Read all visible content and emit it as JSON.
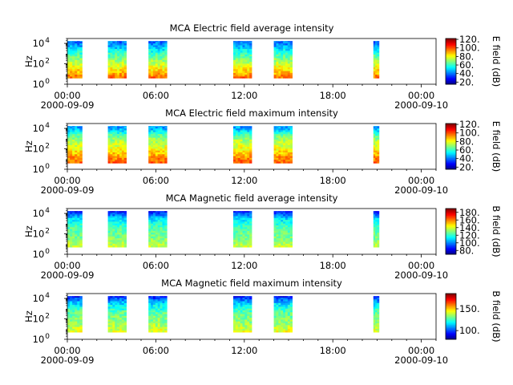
{
  "chart_data": [
    {
      "type": "heatmap",
      "title": "MCA  Electric field average intensity",
      "ylabel": "Hz",
      "colorbar_label": "E field (dB)",
      "yscale": "log",
      "ylim": [
        1,
        30000
      ],
      "yticks": [
        {
          "value": 1,
          "base": "10",
          "exp": "0"
        },
        {
          "value": 100,
          "base": "10",
          "exp": "2"
        },
        {
          "value": 10000,
          "base": "10",
          "exp": "4"
        }
      ],
      "x_start": "2000-09-09 00:00",
      "x_end": "2000-09-10 01:00",
      "xticks": [
        {
          "hour": 0,
          "label": "00:00",
          "date": "2000-09-09"
        },
        {
          "hour": 6,
          "label": "06:00"
        },
        {
          "hour": 12,
          "label": "12:00"
        },
        {
          "hour": 18,
          "label": "18:00"
        },
        {
          "hour": 24,
          "label": "00:00",
          "date": "2000-09-10"
        }
      ],
      "clim": [
        15,
        122
      ],
      "cbar_ticks": [
        "20.",
        "40.",
        "60.",
        "80.",
        "100.",
        "120."
      ],
      "cbar_tick_values": [
        20,
        40,
        60,
        80,
        100,
        120
      ],
      "intervals": [
        {
          "start": "00:00",
          "end": "01:00"
        },
        {
          "start": "02:45",
          "end": "04:00"
        },
        {
          "start": "05:30",
          "end": "06:45"
        },
        {
          "start": "11:15",
          "end": "12:30"
        },
        {
          "start": "14:00",
          "end": "15:15"
        },
        {
          "start": "20:45",
          "end": "21:00"
        }
      ],
      "spectrum_db": [
        {
          "hz": 1,
          "value": 110
        },
        {
          "hz": 10,
          "value": 90
        },
        {
          "hz": 100,
          "value": 75
        },
        {
          "hz": 1000,
          "value": 60
        },
        {
          "hz": 10000,
          "value": 40
        }
      ]
    },
    {
      "type": "heatmap",
      "title": "MCA  Electric field maximum intensity",
      "ylabel": "Hz",
      "colorbar_label": "E field (dB)",
      "yscale": "log",
      "ylim": [
        1,
        30000
      ],
      "yticks": [
        {
          "value": 1,
          "base": "10",
          "exp": "0"
        },
        {
          "value": 100,
          "base": "10",
          "exp": "2"
        },
        {
          "value": 10000,
          "base": "10",
          "exp": "4"
        }
      ],
      "x_start": "2000-09-09 00:00",
      "x_end": "2000-09-10 01:00",
      "xticks": [
        {
          "hour": 0,
          "label": "00:00",
          "date": "2000-09-09"
        },
        {
          "hour": 6,
          "label": "06:00"
        },
        {
          "hour": 12,
          "label": "12:00"
        },
        {
          "hour": 18,
          "label": "18:00"
        },
        {
          "hour": 24,
          "label": "00:00",
          "date": "2000-09-10"
        }
      ],
      "clim": [
        15,
        122
      ],
      "cbar_ticks": [
        "20.",
        "40.",
        "60.",
        "80.",
        "100.",
        "120."
      ],
      "cbar_tick_values": [
        20,
        40,
        60,
        80,
        100,
        120
      ],
      "intervals": [
        {
          "start": "00:00",
          "end": "01:00"
        },
        {
          "start": "02:45",
          "end": "04:00"
        },
        {
          "start": "05:30",
          "end": "06:45"
        },
        {
          "start": "11:15",
          "end": "12:30"
        },
        {
          "start": "14:00",
          "end": "15:15"
        },
        {
          "start": "20:45",
          "end": "21:00"
        }
      ],
      "spectrum_db": [
        {
          "hz": 1,
          "value": 105
        },
        {
          "hz": 10,
          "value": 95
        },
        {
          "hz": 100,
          "value": 80
        },
        {
          "hz": 1000,
          "value": 70
        },
        {
          "hz": 10000,
          "value": 45
        }
      ]
    },
    {
      "type": "heatmap",
      "title": "MCA  Magnetic field average intensity",
      "ylabel": "Hz",
      "colorbar_label": "B field (dB)",
      "yscale": "log",
      "ylim": [
        1,
        30000
      ],
      "yticks": [
        {
          "value": 1,
          "base": "10",
          "exp": "0"
        },
        {
          "value": 100,
          "base": "10",
          "exp": "2"
        },
        {
          "value": 10000,
          "base": "10",
          "exp": "4"
        }
      ],
      "x_start": "2000-09-09 00:00",
      "x_end": "2000-09-10 01:00",
      "xticks": [
        {
          "hour": 0,
          "label": "00:00",
          "date": "2000-09-09"
        },
        {
          "hour": 6,
          "label": "06:00"
        },
        {
          "hour": 12,
          "label": "12:00"
        },
        {
          "hour": 18,
          "label": "18:00"
        },
        {
          "hour": 24,
          "label": "00:00",
          "date": "2000-09-10"
        }
      ],
      "clim": [
        70,
        190
      ],
      "cbar_ticks": [
        "80.",
        "100.",
        "120.",
        "140.",
        "160.",
        "180."
      ],
      "cbar_tick_values": [
        80,
        100,
        120,
        140,
        160,
        180
      ],
      "intervals": [
        {
          "start": "00:00",
          "end": "01:00"
        },
        {
          "start": "02:45",
          "end": "04:00"
        },
        {
          "start": "05:30",
          "end": "06:45"
        },
        {
          "start": "11:15",
          "end": "12:30"
        },
        {
          "start": "14:00",
          "end": "15:15"
        },
        {
          "start": "20:45",
          "end": "21:00"
        }
      ],
      "spectrum_db": [
        {
          "hz": 4,
          "value": 140
        },
        {
          "hz": 30,
          "value": 130
        },
        {
          "hz": 300,
          "value": 125
        },
        {
          "hz": 3000,
          "value": 110
        },
        {
          "hz": 20000,
          "value": 80
        }
      ]
    },
    {
      "type": "heatmap",
      "title": "MCA  Magnetic field maximum intensity",
      "ylabel": "Hz",
      "colorbar_label": "B field (dB)",
      "yscale": "log",
      "ylim": [
        1,
        30000
      ],
      "yticks": [
        {
          "value": 1,
          "base": "10",
          "exp": "0"
        },
        {
          "value": 100,
          "base": "10",
          "exp": "2"
        },
        {
          "value": 10000,
          "base": "10",
          "exp": "4"
        }
      ],
      "x_start": "2000-09-09 00:00",
      "x_end": "2000-09-10 01:00",
      "xticks": [
        {
          "hour": 0,
          "label": "00:00",
          "date": "2000-09-09"
        },
        {
          "hour": 6,
          "label": "06:00"
        },
        {
          "hour": 12,
          "label": "12:00"
        },
        {
          "hour": 18,
          "label": "18:00"
        },
        {
          "hour": 24,
          "label": "00:00",
          "date": "2000-09-10"
        }
      ],
      "clim": [
        80,
        185
      ],
      "cbar_ticks": [
        "100.",
        "150."
      ],
      "cbar_tick_values": [
        100,
        150
      ],
      "intervals": [
        {
          "start": "00:00",
          "end": "01:00"
        },
        {
          "start": "02:45",
          "end": "04:00"
        },
        {
          "start": "05:30",
          "end": "06:45"
        },
        {
          "start": "11:15",
          "end": "12:30"
        },
        {
          "start": "14:00",
          "end": "15:15"
        },
        {
          "start": "20:45",
          "end": "21:00"
        }
      ],
      "spectrum_db": [
        {
          "hz": 4,
          "value": 145
        },
        {
          "hz": 30,
          "value": 135
        },
        {
          "hz": 300,
          "value": 130
        },
        {
          "hz": 3000,
          "value": 115
        },
        {
          "hz": 20000,
          "value": 90
        }
      ]
    }
  ]
}
